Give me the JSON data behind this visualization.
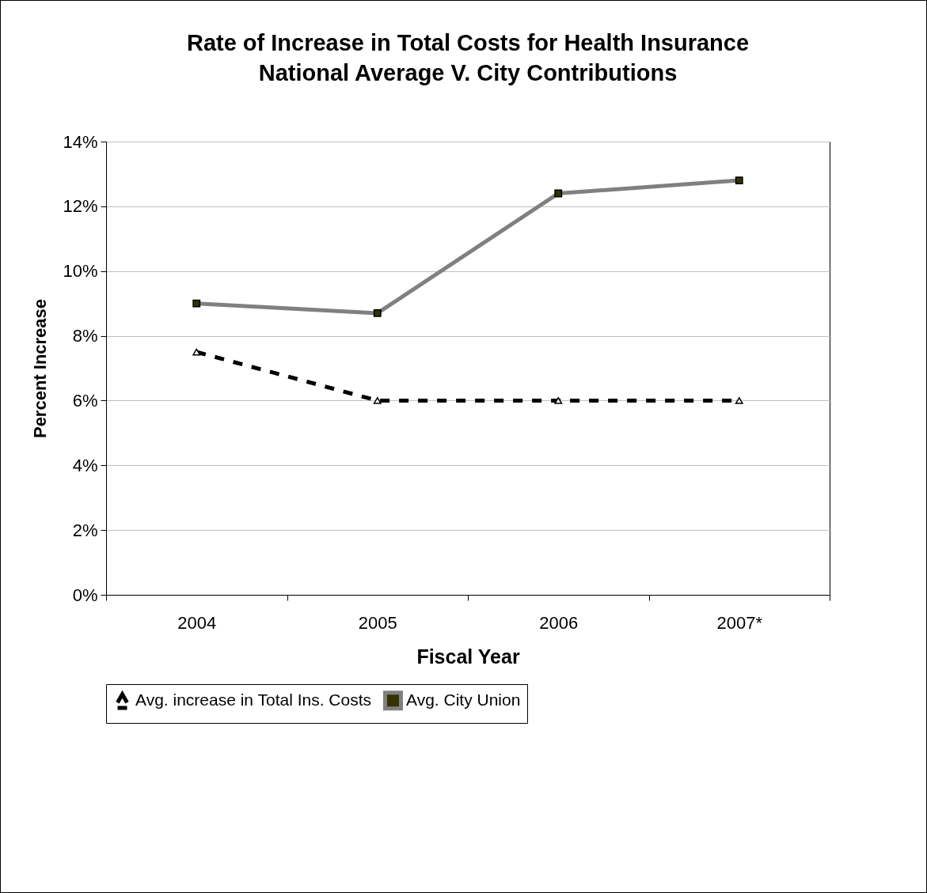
{
  "chart_data": {
    "type": "line",
    "title": [
      "Rate of Increase in Total Costs for Health Insurance",
      "National Average V. City Contributions"
    ],
    "xlabel": "Fiscal Year",
    "ylabel": "Percent Increase",
    "categories": [
      "2004",
      "2005",
      "2006",
      "2007*"
    ],
    "series": [
      {
        "name": "Avg. increase in Total Ins. Costs",
        "color": "#000000",
        "marker": "triangle",
        "line_style": "dashed",
        "values": [
          7.5,
          6.0,
          6.0,
          6.0
        ]
      },
      {
        "name": "Avg. City Union",
        "color": "#808080",
        "marker": "square",
        "line_style": "solid",
        "values": [
          9.0,
          8.7,
          12.4,
          12.8
        ]
      }
    ],
    "ylim": [
      0,
      14
    ],
    "yticks": [
      {
        "value": 0,
        "label": "0%"
      },
      {
        "value": 2,
        "label": "2%"
      },
      {
        "value": 4,
        "label": "4%"
      },
      {
        "value": 6,
        "label": "6%"
      },
      {
        "value": 8,
        "label": "8%"
      },
      {
        "value": 10,
        "label": "10%"
      },
      {
        "value": 12,
        "label": "12%"
      },
      {
        "value": 14,
        "label": "14%"
      }
    ],
    "grid": "y",
    "legend": "bottom"
  }
}
